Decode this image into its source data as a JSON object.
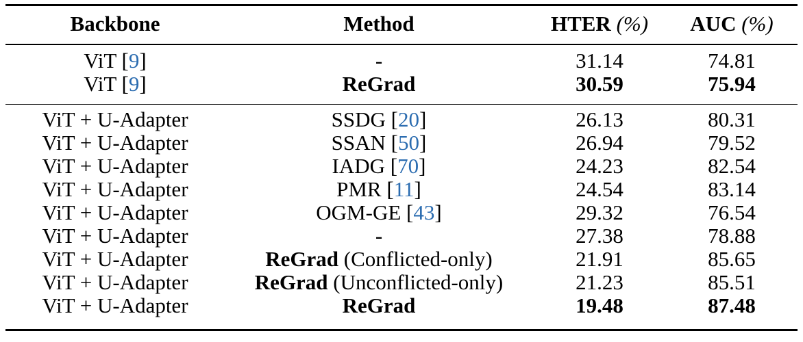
{
  "table": {
    "headers": {
      "backbone": "Backbone",
      "method": "Method",
      "hter_label": "HTER",
      "hter_unit": "(%)",
      "auc_label": "AUC",
      "auc_unit": "(%)"
    },
    "group1": [
      {
        "backbone": "ViT",
        "backbone_ref": "9",
        "method": "-",
        "method_bold": false,
        "hter": "31.14",
        "auc": "74.81",
        "values_bold": false
      },
      {
        "backbone": "ViT",
        "backbone_ref": "9",
        "method": "ReGrad",
        "method_bold": true,
        "hter": "30.59",
        "auc": "75.94",
        "values_bold": true
      }
    ],
    "group2": [
      {
        "backbone": "ViT + U-Adapter",
        "method": "SSDG",
        "method_ref": "20",
        "hter": "26.13",
        "auc": "80.31"
      },
      {
        "backbone": "ViT + U-Adapter",
        "method": "SSAN",
        "method_ref": "50",
        "hter": "26.94",
        "auc": "79.52"
      },
      {
        "backbone": "ViT + U-Adapter",
        "method": "IADG",
        "method_ref": "70",
        "hter": "24.23",
        "auc": "82.54"
      },
      {
        "backbone": "ViT + U-Adapter",
        "method": "PMR",
        "method_ref": "11",
        "hter": "24.54",
        "auc": "83.14"
      },
      {
        "backbone": "ViT + U-Adapter",
        "method": "OGM-GE",
        "method_ref": "43",
        "hter": "29.32",
        "auc": "76.54"
      },
      {
        "backbone": "ViT + U-Adapter",
        "method": "-",
        "hter": "27.38",
        "auc": "78.88"
      },
      {
        "backbone": "ViT + U-Adapter",
        "method_bold_part": "ReGrad",
        "method_suffix": "(Conflicted-only)",
        "hter": "21.91",
        "auc": "85.65"
      },
      {
        "backbone": "ViT + U-Adapter",
        "method_bold_part": "ReGrad",
        "method_suffix": "(Unconflicted-only)",
        "hter": "21.23",
        "auc": "85.51"
      },
      {
        "backbone": "ViT + U-Adapter",
        "method_bold_part": "ReGrad",
        "hter": "19.48",
        "auc": "87.48",
        "values_bold": true
      }
    ]
  }
}
